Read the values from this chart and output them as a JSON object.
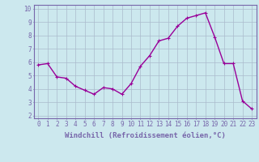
{
  "x": [
    0,
    1,
    2,
    3,
    4,
    5,
    6,
    7,
    8,
    9,
    10,
    11,
    12,
    13,
    14,
    15,
    16,
    17,
    18,
    19,
    20,
    21,
    22,
    23
  ],
  "y": [
    5.8,
    5.9,
    4.9,
    4.8,
    4.2,
    3.9,
    3.6,
    4.1,
    4.0,
    3.6,
    4.4,
    5.7,
    6.5,
    7.6,
    7.8,
    8.7,
    9.3,
    9.5,
    9.7,
    7.9,
    5.9,
    5.9,
    3.1,
    2.5
  ],
  "line_color": "#990099",
  "marker": "+",
  "marker_size": 3,
  "xlabel": "Windchill (Refroidissement éolien,°C)",
  "xlabel_fontsize": 6.5,
  "ylabel_ticks": [
    2,
    3,
    4,
    5,
    6,
    7,
    8,
    9,
    10
  ],
  "xtick_labels": [
    "0",
    "1",
    "2",
    "3",
    "4",
    "5",
    "6",
    "7",
    "8",
    "9",
    "10",
    "11",
    "12",
    "13",
    "14",
    "15",
    "16",
    "17",
    "18",
    "19",
    "20",
    "21",
    "22",
    "23"
  ],
  "xlim": [
    -0.5,
    23.5
  ],
  "ylim": [
    1.8,
    10.3
  ],
  "background_color": "#cce8ee",
  "grid_color": "#aabbcc",
  "tick_fontsize": 5.5,
  "line_width": 1.0,
  "spine_color": "#7766aa"
}
